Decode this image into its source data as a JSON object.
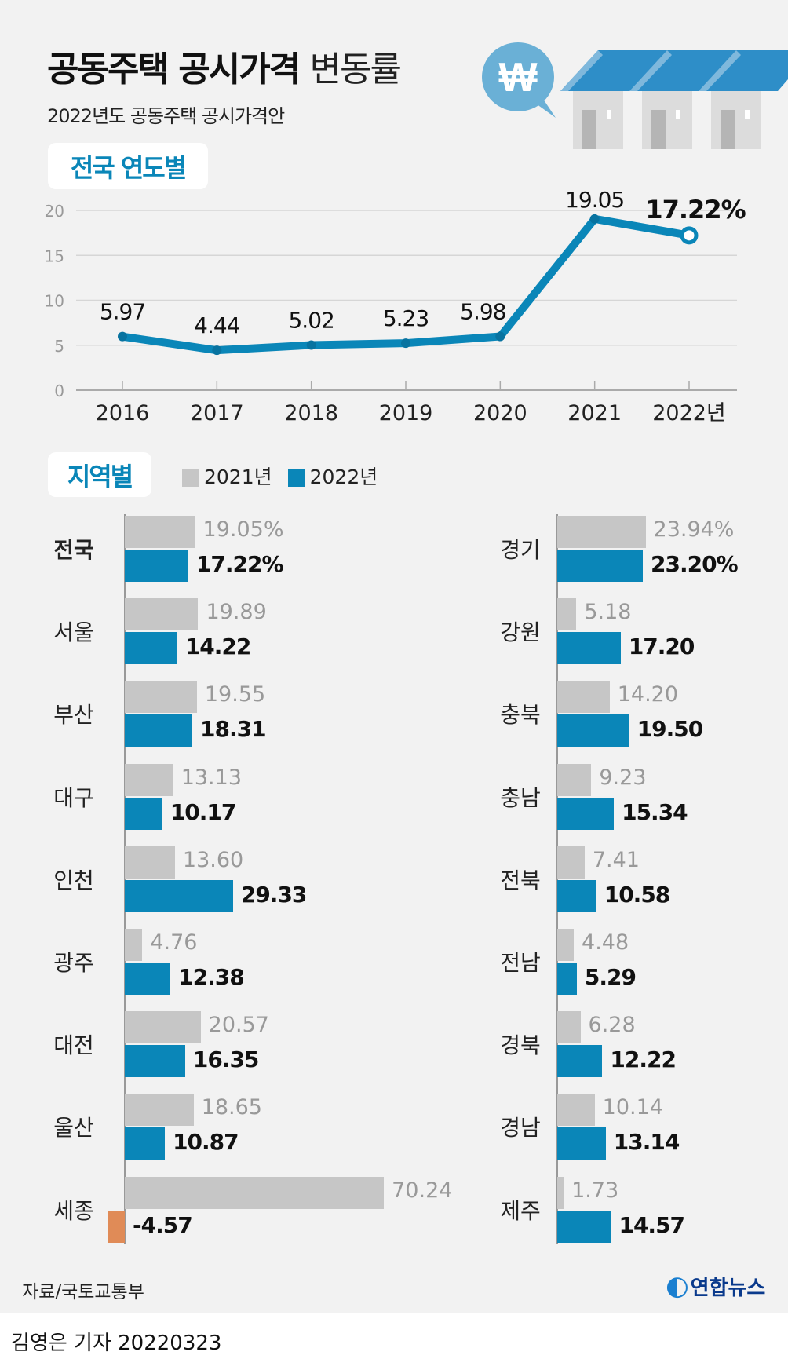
{
  "header": {
    "title_bold": "공동주택 공시가격",
    "title_light": "변동률",
    "subtitle": "2022년도 공동주택 공시가격안"
  },
  "colors": {
    "accent": "#0a86b8",
    "gray_bar": "#c6c6c6",
    "negative": "#e08b57",
    "background": "#f2f2f2"
  },
  "icons": [
    "won-speech-bubble-icon",
    "houses-illustration"
  ],
  "chart_data": [
    {
      "type": "line",
      "title": "전국 연도별",
      "categories": [
        "2016",
        "2017",
        "2018",
        "2019",
        "2020",
        "2021",
        "2022년"
      ],
      "values": [
        5.97,
        4.44,
        5.02,
        5.23,
        5.98,
        19.05,
        17.22
      ],
      "labels": [
        "5.97",
        "4.44",
        "5.02",
        "5.23",
        "5.98",
        "19.05",
        "17.22%"
      ],
      "yticks": [
        "0",
        "5",
        "10",
        "15",
        "20"
      ],
      "ylim": [
        0,
        20
      ],
      "grid": true
    },
    {
      "type": "bar",
      "title": "지역별",
      "legend": [
        "2021년",
        "2022년"
      ],
      "legend_placement": "top",
      "left": [
        {
          "name": "전국",
          "v21": 19.05,
          "v22": 17.22,
          "l21": "19.05%",
          "l22": "17.22%"
        },
        {
          "name": "서울",
          "v21": 19.89,
          "v22": 14.22,
          "l21": "19.89",
          "l22": "14.22"
        },
        {
          "name": "부산",
          "v21": 19.55,
          "v22": 18.31,
          "l21": "19.55",
          "l22": "18.31"
        },
        {
          "name": "대구",
          "v21": 13.13,
          "v22": 10.17,
          "l21": "13.13",
          "l22": "10.17"
        },
        {
          "name": "인천",
          "v21": 13.6,
          "v22": 29.33,
          "l21": "13.60",
          "l22": "29.33"
        },
        {
          "name": "광주",
          "v21": 4.76,
          "v22": 12.38,
          "l21": "4.76",
          "l22": "12.38"
        },
        {
          "name": "대전",
          "v21": 20.57,
          "v22": 16.35,
          "l21": "20.57",
          "l22": "16.35"
        },
        {
          "name": "울산",
          "v21": 18.65,
          "v22": 10.87,
          "l21": "18.65",
          "l22": "10.87"
        },
        {
          "name": "세종",
          "v21": 70.24,
          "v22": -4.57,
          "l21": "70.24",
          "l22": "-4.57"
        }
      ],
      "right": [
        {
          "name": "경기",
          "v21": 23.94,
          "v22": 23.2,
          "l21": "23.94%",
          "l22": "23.20%"
        },
        {
          "name": "강원",
          "v21": 5.18,
          "v22": 17.2,
          "l21": "5.18",
          "l22": "17.20"
        },
        {
          "name": "충북",
          "v21": 14.2,
          "v22": 19.5,
          "l21": "14.20",
          "l22": "19.50"
        },
        {
          "name": "충남",
          "v21": 9.23,
          "v22": 15.34,
          "l21": "9.23",
          "l22": "15.34"
        },
        {
          "name": "전북",
          "v21": 7.41,
          "v22": 10.58,
          "l21": "7.41",
          "l22": "10.58"
        },
        {
          "name": "전남",
          "v21": 4.48,
          "v22": 5.29,
          "l21": "4.48",
          "l22": "5.29"
        },
        {
          "name": "경북",
          "v21": 6.28,
          "v22": 12.22,
          "l21": "6.28",
          "l22": "12.22"
        },
        {
          "name": "경남",
          "v21": 10.14,
          "v22": 13.14,
          "l21": "10.14",
          "l22": "13.14"
        },
        {
          "name": "제주",
          "v21": 1.73,
          "v22": 14.57,
          "l21": "1.73",
          "l22": "14.57"
        }
      ]
    }
  ],
  "footer": {
    "source": "자료/국토교통부",
    "logo": "연합뉴스",
    "byline": "김영은 기자  20220323"
  }
}
